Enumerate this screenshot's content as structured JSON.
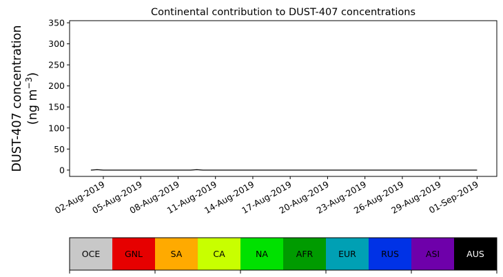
{
  "chart_data": {
    "type": "area",
    "stacked": true,
    "title": "Continental contribution to DUST-407 concentrations",
    "ylabel_line1": "DUST-407 concentration",
    "ylabel_line2_prefix": "(ng m",
    "ylabel_line2_sup": "−3",
    "ylabel_line2_suffix": ")",
    "ylim": [
      -15,
      355
    ],
    "yticks": [
      0,
      50,
      100,
      150,
      200,
      250,
      300,
      350
    ],
    "xlim": [
      "2019-07-30T07:00",
      "2019-09-02T14:00"
    ],
    "xticks": [
      {
        "date": "2019-08-02",
        "label": "02-Aug-2019"
      },
      {
        "date": "2019-08-05",
        "label": "05-Aug-2019"
      },
      {
        "date": "2019-08-08",
        "label": "08-Aug-2019"
      },
      {
        "date": "2019-08-11",
        "label": "11-Aug-2019"
      },
      {
        "date": "2019-08-14",
        "label": "14-Aug-2019"
      },
      {
        "date": "2019-08-17",
        "label": "17-Aug-2019"
      },
      {
        "date": "2019-08-20",
        "label": "20-Aug-2019"
      },
      {
        "date": "2019-08-23",
        "label": "23-Aug-2019"
      },
      {
        "date": "2019-08-26",
        "label": "26-Aug-2019"
      },
      {
        "date": "2019-08-29",
        "label": "29-Aug-2019"
      },
      {
        "date": "2019-09-01",
        "label": "01-Sep-2019"
      }
    ],
    "x": [
      "2019-08-01T00:00",
      "2019-08-01T12:00",
      "2019-08-02T00:00",
      "2019-08-02T12:00",
      "2019-08-03T00:00",
      "2019-08-03T12:00",
      "2019-08-04T00:00",
      "2019-08-04T12:00",
      "2019-08-05T00:00",
      "2019-08-05T12:00",
      "2019-08-06T00:00",
      "2019-08-06T12:00",
      "2019-08-07T00:00",
      "2019-08-07T12:00",
      "2019-08-08T00:00",
      "2019-08-08T12:00",
      "2019-08-09T00:00",
      "2019-08-09T12:00",
      "2019-08-10T00:00",
      "2019-08-10T12:00",
      "2019-08-11T00:00",
      "2019-08-11T12:00",
      "2019-08-12T00:00",
      "2019-08-12T12:00",
      "2019-08-13T00:00",
      "2019-08-13T12:00",
      "2019-08-14T00:00",
      "2019-08-14T12:00",
      "2019-08-15T00:00",
      "2019-08-15T12:00",
      "2019-08-16T00:00",
      "2019-08-16T12:00",
      "2019-08-17T00:00",
      "2019-08-17T12:00",
      "2019-08-18T00:00",
      "2019-08-18T12:00",
      "2019-08-19T00:00",
      "2019-08-19T12:00",
      "2019-08-20T00:00",
      "2019-08-20T12:00",
      "2019-08-21T00:00",
      "2019-08-21T12:00",
      "2019-08-22T00:00",
      "2019-08-22T12:00",
      "2019-08-23T00:00",
      "2019-08-23T12:00",
      "2019-08-24T00:00",
      "2019-08-24T12:00",
      "2019-08-25T00:00",
      "2019-08-25T12:00",
      "2019-08-26T00:00",
      "2019-08-26T12:00",
      "2019-08-27T00:00",
      "2019-08-27T12:00",
      "2019-08-28T00:00",
      "2019-08-28T12:00",
      "2019-08-29T00:00",
      "2019-08-29T12:00",
      "2019-08-30T00:00",
      "2019-08-30T12:00",
      "2019-08-31T00:00",
      "2019-08-31T12:00",
      "2019-09-01T00:00"
    ],
    "series": [
      {
        "name": "OCE",
        "color": "#c8c8c8",
        "values": [
          0,
          0,
          0,
          0,
          0,
          0,
          0,
          0,
          0,
          0,
          0,
          0,
          0,
          0,
          0,
          0,
          0,
          0,
          0,
          0,
          0,
          0,
          0,
          0,
          0,
          0,
          0,
          0,
          0,
          0,
          0,
          0,
          0,
          0,
          0,
          0,
          0,
          0,
          0,
          0,
          0,
          0,
          0,
          0,
          0,
          0,
          0,
          0,
          0,
          0,
          0,
          0,
          0,
          0,
          0,
          0,
          0,
          0,
          0,
          0,
          0,
          0,
          0
        ]
      },
      {
        "name": "GNL",
        "color": "#e60000",
        "values": [
          0,
          0,
          0,
          0,
          0,
          0,
          0,
          0,
          0,
          0,
          0,
          0,
          0,
          0,
          0,
          0,
          0,
          1,
          0,
          0,
          0,
          0,
          0,
          0,
          0,
          0,
          0,
          0,
          0,
          0,
          0,
          0,
          0,
          0,
          0,
          0,
          0,
          0,
          0,
          0,
          0,
          0,
          0,
          0,
          0,
          0,
          0,
          0,
          0,
          0,
          0,
          0,
          0,
          0,
          0,
          0,
          0,
          0,
          0,
          0,
          0,
          0,
          0
        ]
      },
      {
        "name": "SA",
        "color": "#ffaa00",
        "values": [
          0,
          0,
          0,
          0,
          0,
          0,
          0,
          0,
          0,
          0,
          0,
          0,
          0,
          0,
          0,
          0,
          0,
          0,
          0,
          0,
          0,
          0,
          0,
          0,
          0,
          0,
          0,
          0,
          0,
          0,
          0,
          0,
          0,
          0,
          0,
          0,
          0,
          0,
          0,
          0,
          0,
          0,
          0,
          0,
          0,
          0,
          0,
          0,
          0,
          0,
          0,
          0,
          0,
          0,
          0,
          0,
          0,
          0,
          0,
          0,
          0,
          0,
          0
        ]
      },
      {
        "name": "CA",
        "color": "#c8ff00",
        "values": [
          0,
          0,
          0,
          0,
          0,
          0,
          0,
          0,
          0,
          0,
          0,
          0,
          0,
          0,
          0,
          0,
          0,
          0,
          0,
          0,
          0,
          0,
          0,
          0,
          0,
          0,
          0,
          0,
          0,
          0,
          0,
          0,
          0,
          0,
          0,
          0,
          0,
          0,
          0,
          0,
          0,
          0,
          0,
          0,
          0,
          0,
          0,
          0,
          0,
          0,
          0,
          0,
          0,
          0,
          0,
          0,
          0,
          0,
          0,
          0,
          0,
          0,
          0
        ]
      },
      {
        "name": "NA",
        "color": "#00e100",
        "values": [
          0,
          1,
          0,
          0,
          0,
          0,
          0,
          0,
          0,
          0,
          0,
          0,
          0,
          0,
          0,
          0,
          0,
          0,
          0,
          0,
          0,
          0,
          0,
          0,
          0,
          0,
          0,
          0,
          0,
          0,
          0,
          0,
          0,
          0,
          0,
          0,
          0,
          0,
          0,
          0,
          0,
          0,
          0,
          0,
          0,
          0,
          0,
          0,
          0,
          0,
          0,
          0,
          0,
          0,
          0,
          0,
          0,
          0,
          0,
          0,
          0,
          0,
          0
        ]
      },
      {
        "name": "AFR",
        "color": "#009b00",
        "values": [
          0,
          0,
          0,
          0,
          0,
          0,
          0,
          0,
          0,
          0,
          0,
          0,
          0,
          0,
          0,
          0,
          0,
          0,
          0,
          0,
          0,
          0,
          0,
          0,
          0,
          0,
          0,
          0,
          0,
          0,
          0,
          0,
          0,
          0,
          0,
          0,
          0,
          0,
          0,
          0,
          0,
          0,
          0,
          0,
          0,
          0,
          0,
          0,
          0,
          0,
          0,
          0,
          0,
          0,
          0,
          0,
          0,
          0,
          0,
          0,
          0,
          0,
          0
        ]
      },
      {
        "name": "EUR",
        "color": "#00a0b4",
        "values": [
          0,
          0,
          0,
          0,
          0,
          0,
          0,
          0,
          0,
          0,
          0,
          0,
          0,
          0,
          0,
          0,
          0,
          0,
          0,
          0,
          0,
          0,
          0,
          0,
          0,
          0,
          0,
          0,
          0,
          0,
          0,
          0,
          0,
          0,
          0,
          0,
          0,
          0,
          0,
          0,
          0,
          0,
          0,
          0,
          0,
          0,
          0,
          0,
          0,
          0,
          0,
          0,
          0,
          0,
          0,
          0,
          0,
          0,
          0,
          0,
          0,
          0,
          0
        ]
      },
      {
        "name": "RUS",
        "color": "#0032e6",
        "values": [
          0,
          0,
          0,
          0,
          0,
          0,
          0,
          0,
          0,
          0,
          0,
          0,
          0,
          0,
          0,
          0,
          0,
          0,
          0,
          0,
          0,
          0,
          0,
          0,
          0,
          0,
          0,
          0,
          0,
          0,
          0,
          0,
          0,
          0,
          0,
          0,
          0,
          0,
          0,
          0,
          0,
          0,
          0,
          0,
          0,
          0,
          0,
          0,
          0,
          0,
          0,
          0,
          0,
          0,
          0,
          0,
          0,
          0,
          0,
          0,
          0,
          0,
          0
        ]
      },
      {
        "name": "ASI",
        "color": "#6e00aa",
        "values": [
          0,
          0,
          0,
          0,
          0,
          0,
          0,
          0,
          0,
          0,
          0,
          0,
          0,
          0,
          0,
          0,
          0,
          0,
          0,
          0,
          0,
          0,
          0,
          0,
          0,
          0,
          0,
          0,
          0,
          0,
          0,
          0,
          0,
          0,
          0,
          0,
          0,
          0,
          0,
          0,
          0,
          0,
          0,
          0,
          0,
          0,
          0,
          0,
          0,
          0,
          0,
          0,
          0,
          0,
          0,
          0,
          0,
          0,
          0,
          0,
          0,
          0,
          0
        ]
      },
      {
        "name": "AUS",
        "color": "#000000",
        "values": [
          0,
          0,
          0,
          0,
          0,
          0,
          0,
          0,
          0,
          0,
          0,
          0,
          0,
          0,
          0,
          0,
          0,
          0,
          0,
          0,
          0,
          0,
          0,
          0,
          0,
          0,
          0,
          0,
          0,
          0,
          0,
          0,
          0,
          0,
          0,
          0,
          0,
          0,
          0,
          0,
          0,
          0,
          0,
          0,
          0,
          0,
          0,
          0,
          0,
          0,
          0,
          0,
          0,
          0,
          0,
          0,
          0,
          0,
          0,
          0,
          0,
          0,
          0
        ]
      }
    ]
  }
}
